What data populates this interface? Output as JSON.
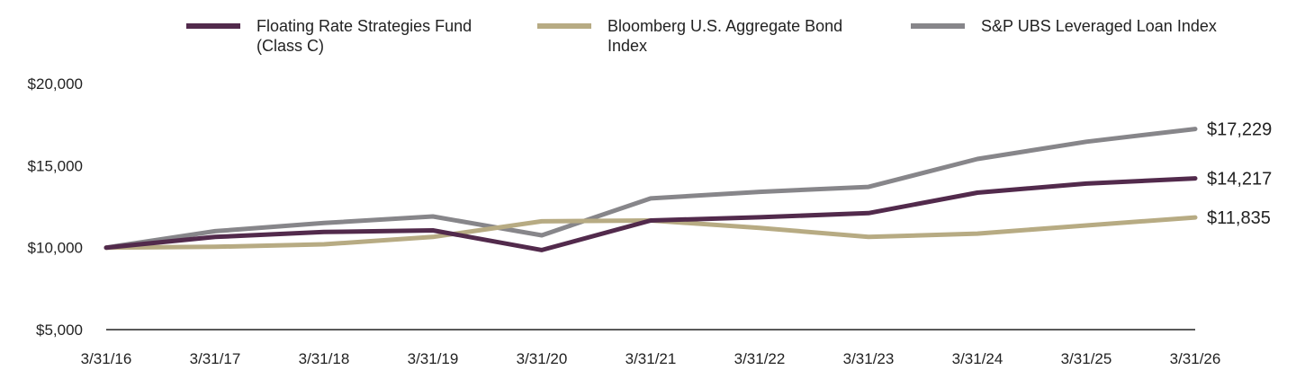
{
  "chart_data": {
    "type": "line",
    "title": "",
    "xlabel": "",
    "ylabel": "",
    "x": [
      "3/31/16",
      "3/31/17",
      "3/31/18",
      "3/31/19",
      "3/31/20",
      "3/31/21",
      "3/31/22",
      "3/31/23",
      "3/31/24",
      "3/31/25",
      "3/31/26"
    ],
    "ylim": [
      5000,
      20000
    ],
    "yticks": [
      {
        "value": 5000,
        "label": "$5,000"
      },
      {
        "value": 10000,
        "label": "$10,000"
      },
      {
        "value": 15000,
        "label": "$15,000"
      },
      {
        "value": 20000,
        "label": "$20,000"
      }
    ],
    "grid": false,
    "legend_position": "top",
    "series": [
      {
        "name": "Floating Rate Strategies Fund (Class C)",
        "legend_lines": [
          "Floating Rate Strategies Fund",
          "(Class C)"
        ],
        "color": "#522a4c",
        "values": [
          10000,
          10650,
          10950,
          11050,
          9850,
          11650,
          11850,
          12100,
          13350,
          13900,
          14217
        ],
        "end_label": "$14,217"
      },
      {
        "name": "Bloomberg U.S. Aggregate Bond Index",
        "legend_lines": [
          "Bloomberg U.S. Aggregate Bond",
          "Index"
        ],
        "color": "#b7ab83",
        "values": [
          10000,
          10050,
          10200,
          10650,
          11600,
          11650,
          11200,
          10650,
          10850,
          11350,
          11835
        ],
        "end_label": "$11,835"
      },
      {
        "name": "S&P UBS Leveraged Loan Index",
        "legend_lines": [
          "S&P UBS Leveraged Loan Index"
        ],
        "color": "#87868a",
        "values": [
          10000,
          11000,
          11500,
          11900,
          10750,
          13000,
          13400,
          13700,
          15400,
          16450,
          17229
        ],
        "end_label": "$17,229"
      }
    ]
  }
}
